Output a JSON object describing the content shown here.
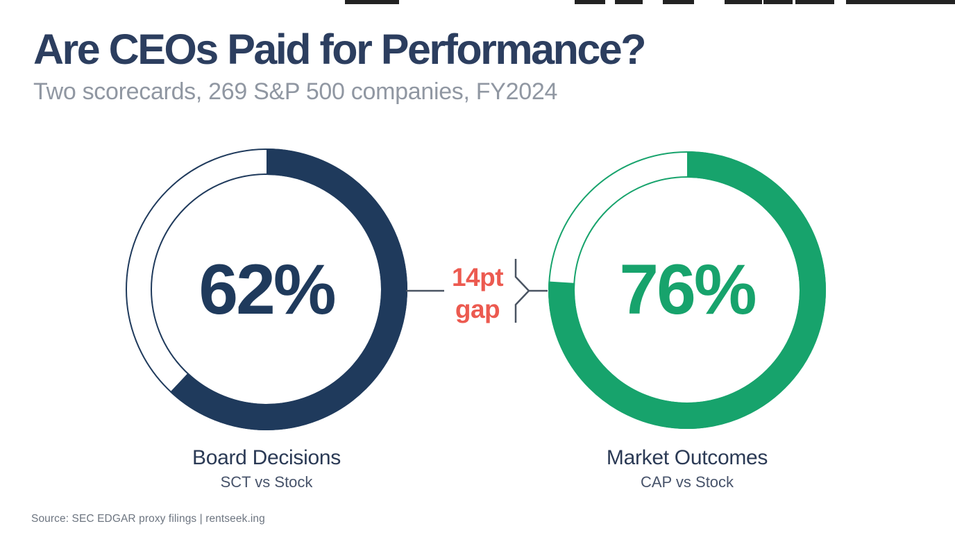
{
  "colors": {
    "background": "#ffffff",
    "navy": "#1f3a5c",
    "title_navy": "#2c3e5f",
    "green": "#17a36c",
    "red": "#ec5a50",
    "subtitle_gray": "#9097a2",
    "sublabel_gray": "#47536a",
    "footer_gray": "#6d7580",
    "connector_gray": "#4a5462",
    "artifact_dark": "#222222"
  },
  "header": {
    "title": "Are CEOs Paid for Performance?",
    "subtitle": "Two scorecards, 269 S&P 500 companies, FY2024"
  },
  "donut_left": {
    "value_display": "62%",
    "label": "Board Decisions",
    "sublabel": "SCT vs Stock"
  },
  "donut_right": {
    "value_display": "76%",
    "label": "Market Outcomes",
    "sublabel": "CAP vs Stock"
  },
  "gap_annotation": {
    "line1": "14pt",
    "line2": "gap"
  },
  "footer": {
    "source": "Source: SEC EDGAR proxy filings | rentseek.ing"
  },
  "top_artifacts": [
    [
      497,
      78
    ],
    [
      828,
      44
    ],
    [
      886,
      40
    ],
    [
      955,
      45
    ],
    [
      1044,
      54
    ],
    [
      1100,
      42
    ],
    [
      1146,
      56
    ],
    [
      1219,
      157
    ]
  ],
  "chart_data": {
    "type": "pie",
    "subtype": "paired-donut-gauges",
    "title": "Are CEOs Paid for Performance?",
    "subtitle": "Two scorecards, 269 S&P 500 companies, FY2024",
    "charts": [
      {
        "label": "Board Decisions",
        "sublabel": "SCT vs Stock",
        "value": 62,
        "remainder": 38,
        "unit": "%",
        "color": "#1f3a5c",
        "start": "top",
        "direction": "clockwise"
      },
      {
        "label": "Market Outcomes",
        "sublabel": "CAP vs Stock",
        "value": 76,
        "remainder": 24,
        "unit": "%",
        "color": "#17a36c",
        "start": "top",
        "direction": "clockwise"
      }
    ],
    "annotation": {
      "text": "14pt gap",
      "color": "#ec5a50"
    },
    "source": "Source: SEC EDGAR proxy filings | rentseek.ing",
    "legend_position": "none",
    "grid": false
  }
}
